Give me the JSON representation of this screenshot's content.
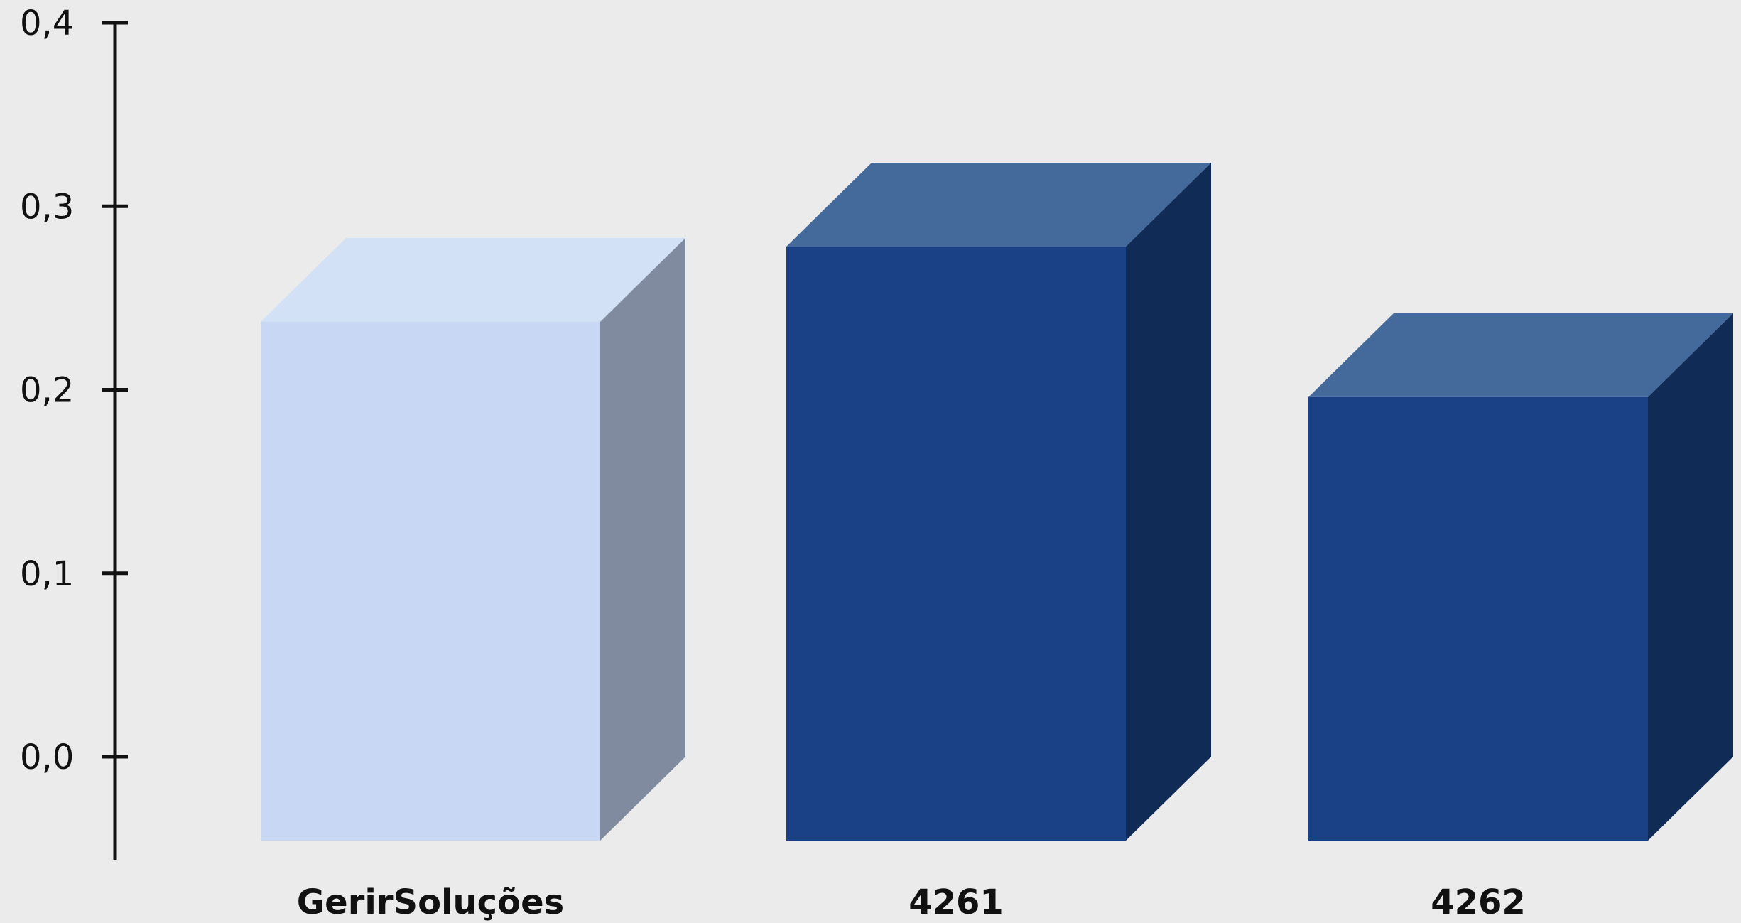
{
  "chart_data": {
    "type": "bar",
    "style": "3d",
    "categories": [
      "GerirSoluções",
      "4261",
      "4262"
    ],
    "values": [
      0.237,
      0.278,
      0.196
    ],
    "bar_colors": [
      {
        "front": "#c8d7f4",
        "top": "#d3e1f7",
        "side": "#808b9f"
      },
      {
        "front": "#1a4086",
        "top": "#44699b",
        "side": "#102b55"
      },
      {
        "front": "#1a4086",
        "top": "#44699b",
        "side": "#102b55"
      }
    ],
    "yticks": [
      "0,0",
      "0,1",
      "0,2",
      "0,3",
      "0,4"
    ],
    "ylim": [
      0,
      0.4
    ],
    "title": "",
    "xlabel": "",
    "ylabel": "",
    "grid": false,
    "background": "#ebebeb",
    "axis_color": "#111111"
  }
}
